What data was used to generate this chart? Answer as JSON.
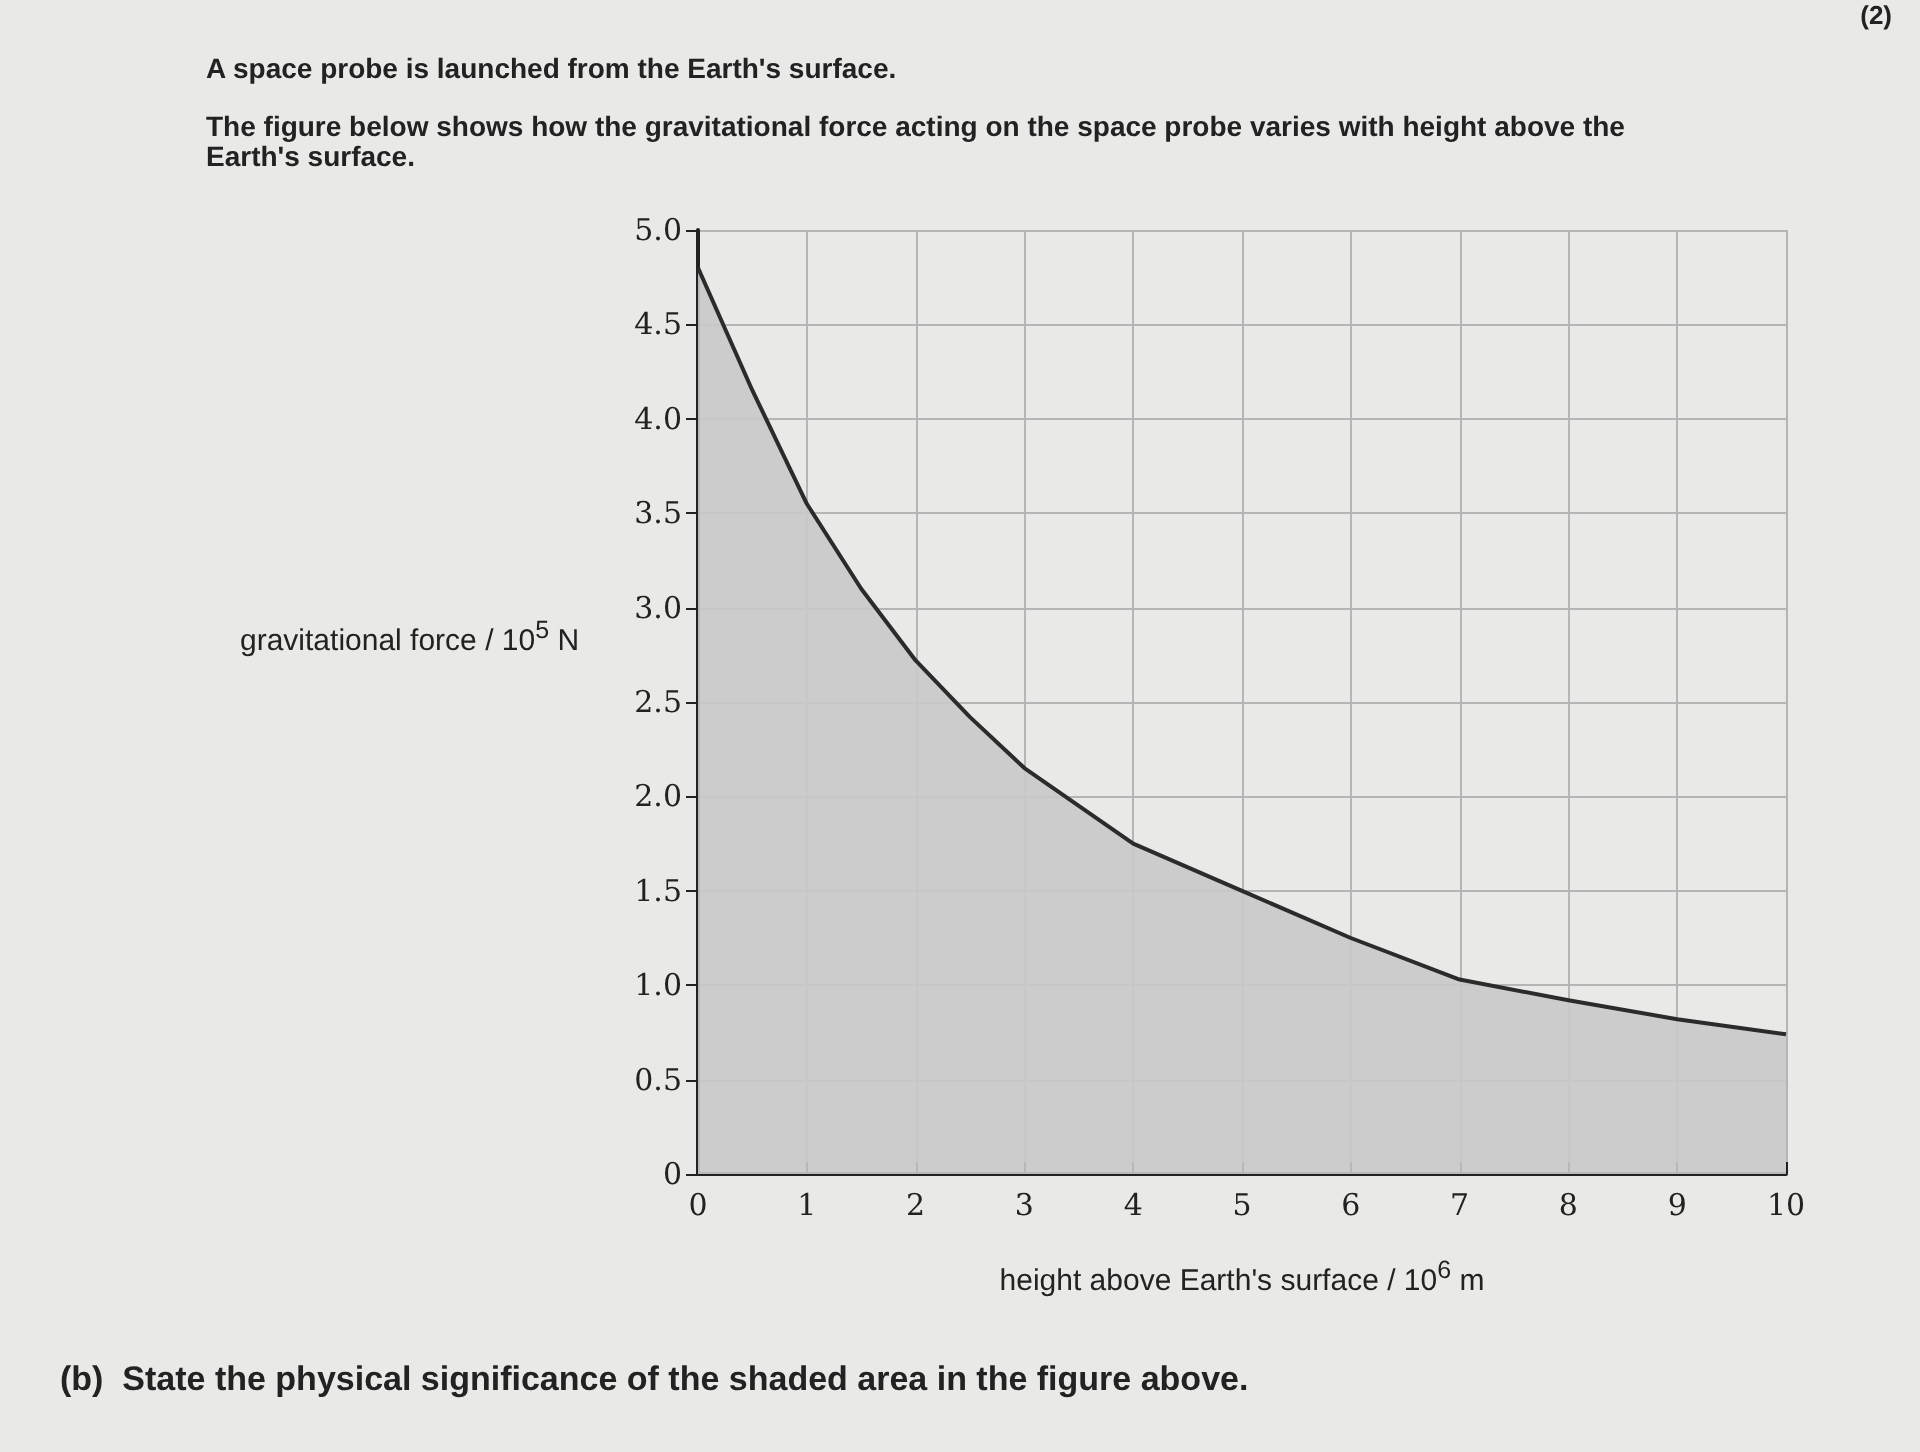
{
  "chart_data": {
    "type": "area",
    "title": "A space probe is launched from the Earth's surface.",
    "subtitle": "The figure below shows how the gravitational force acting on the space probe varies with height above the Earth's surface.",
    "xlabel": "height above Earth's surface / 10$^{6}$ m",
    "ylabel": "gravitational force / 10$^{5}$ N",
    "annotations": [
      "(2)",
      "(b)  State the physical significance of the shaded area in the figure above."
    ],
    "x": [
      0,
      0.5,
      1,
      1.5,
      2,
      2.5,
      3,
      4,
      5,
      6,
      7,
      8,
      9,
      10
    ],
    "series": [
      {
        "color": "#2b2b2b",
        "values": [
          4.8,
          4.15,
          3.55,
          3.1,
          2.72,
          2.42,
          2.15,
          1.75,
          1.5,
          1.25,
          1.03,
          0.92,
          0.82,
          0.74
        ]
      }
    ],
    "xlim": [
      0,
      10
    ],
    "xticks": [
      0,
      1,
      2,
      3,
      4,
      5,
      6,
      7,
      8,
      9,
      10
    ],
    "ylim": [
      0,
      5
    ],
    "yticks": [
      {
        "value": 0,
        "label": "0"
      },
      {
        "value": 0.5,
        "label": "0.5"
      },
      {
        "value": 1,
        "label": "1.0"
      },
      {
        "value": 1.5,
        "label": "1.5"
      },
      {
        "value": 2,
        "label": "2.0"
      },
      {
        "value": 2.5,
        "label": "2.5"
      },
      {
        "value": 3,
        "label": "3.0"
      },
      {
        "value": 3.5,
        "label": "3.5"
      },
      {
        "value": 4,
        "label": "4.0"
      },
      {
        "value": 4.5,
        "label": "4.5"
      },
      {
        "value": 5,
        "label": "5.0"
      }
    ],
    "grid": true,
    "marker": "none"
  }
}
